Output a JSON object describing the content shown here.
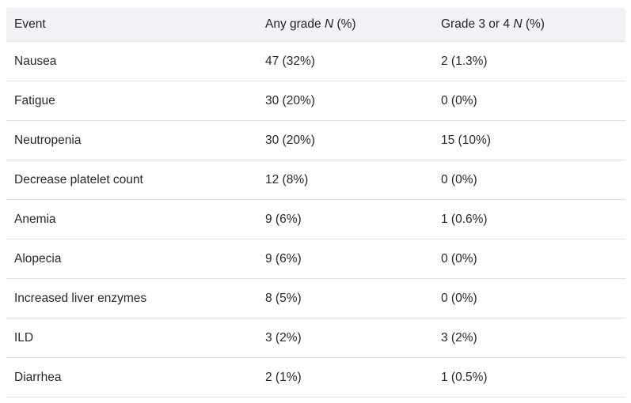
{
  "colors": {
    "header_bg": "#f1f3f6",
    "row_border": "#dee2e6",
    "text": "#25282c"
  },
  "table": {
    "columns": [
      {
        "prefix": "Event",
        "n": "",
        "suffix": ""
      },
      {
        "prefix": "Any grade ",
        "n": "N",
        "suffix": " (%)"
      },
      {
        "prefix": "Grade 3 or 4 ",
        "n": "N",
        "suffix": " (%)"
      }
    ],
    "rows": [
      {
        "event": "Nausea",
        "any_grade": "47 (32%)",
        "grade_3_4": "2 (1.3%)"
      },
      {
        "event": "Fatigue",
        "any_grade": "30 (20%)",
        "grade_3_4": "0 (0%)"
      },
      {
        "event": "Neutropenia",
        "any_grade": "30 (20%)",
        "grade_3_4": "15 (10%)"
      },
      {
        "event": "Decrease platelet count",
        "any_grade": "12 (8%)",
        "grade_3_4": "0 (0%)"
      },
      {
        "event": "Anemia",
        "any_grade": "9 (6%)",
        "grade_3_4": "1 (0.6%)"
      },
      {
        "event": "Alopecia",
        "any_grade": "9 (6%)",
        "grade_3_4": "0 (0%)"
      },
      {
        "event": "Increased liver enzymes",
        "any_grade": "8 (5%)",
        "grade_3_4": "0 (0%)"
      },
      {
        "event": "ILD",
        "any_grade": "3 (2%)",
        "grade_3_4": "3 (2%)"
      },
      {
        "event": "Diarrhea",
        "any_grade": "2 (1%)",
        "grade_3_4": "1 (0.5%)"
      }
    ]
  },
  "chart_data": {
    "type": "table",
    "columns": [
      "Event",
      "Any grade N (%)",
      "Grade 3 or 4 N (%)"
    ],
    "rows": [
      [
        "Nausea",
        "47 (32%)",
        "2 (1.3%)"
      ],
      [
        "Fatigue",
        "30 (20%)",
        "0 (0%)"
      ],
      [
        "Neutropenia",
        "30 (20%)",
        "15 (10%)"
      ],
      [
        "Decrease platelet count",
        "12 (8%)",
        "0 (0%)"
      ],
      [
        "Anemia",
        "9 (6%)",
        "1 (0.6%)"
      ],
      [
        "Alopecia",
        "9 (6%)",
        "0 (0%)"
      ],
      [
        "Increased liver enzymes",
        "8 (5%)",
        "0 (0%)"
      ],
      [
        "ILD",
        "3 (2%)",
        "3 (2%)"
      ],
      [
        "Diarrhea",
        "2 (1%)",
        "1 (0.5%)"
      ]
    ],
    "numeric": {
      "events": [
        "Nausea",
        "Fatigue",
        "Neutropenia",
        "Decrease platelet count",
        "Anemia",
        "Alopecia",
        "Increased liver enzymes",
        "ILD",
        "Diarrhea"
      ],
      "any_grade_n": [
        47,
        30,
        30,
        12,
        9,
        9,
        8,
        3,
        2
      ],
      "any_grade_pct": [
        32,
        20,
        20,
        8,
        6,
        6,
        5,
        2,
        1
      ],
      "grade_3_4_n": [
        2,
        0,
        15,
        0,
        1,
        0,
        0,
        3,
        1
      ],
      "grade_3_4_pct": [
        1.3,
        0,
        10,
        0,
        0.6,
        0,
        0,
        2,
        0.5
      ]
    }
  }
}
